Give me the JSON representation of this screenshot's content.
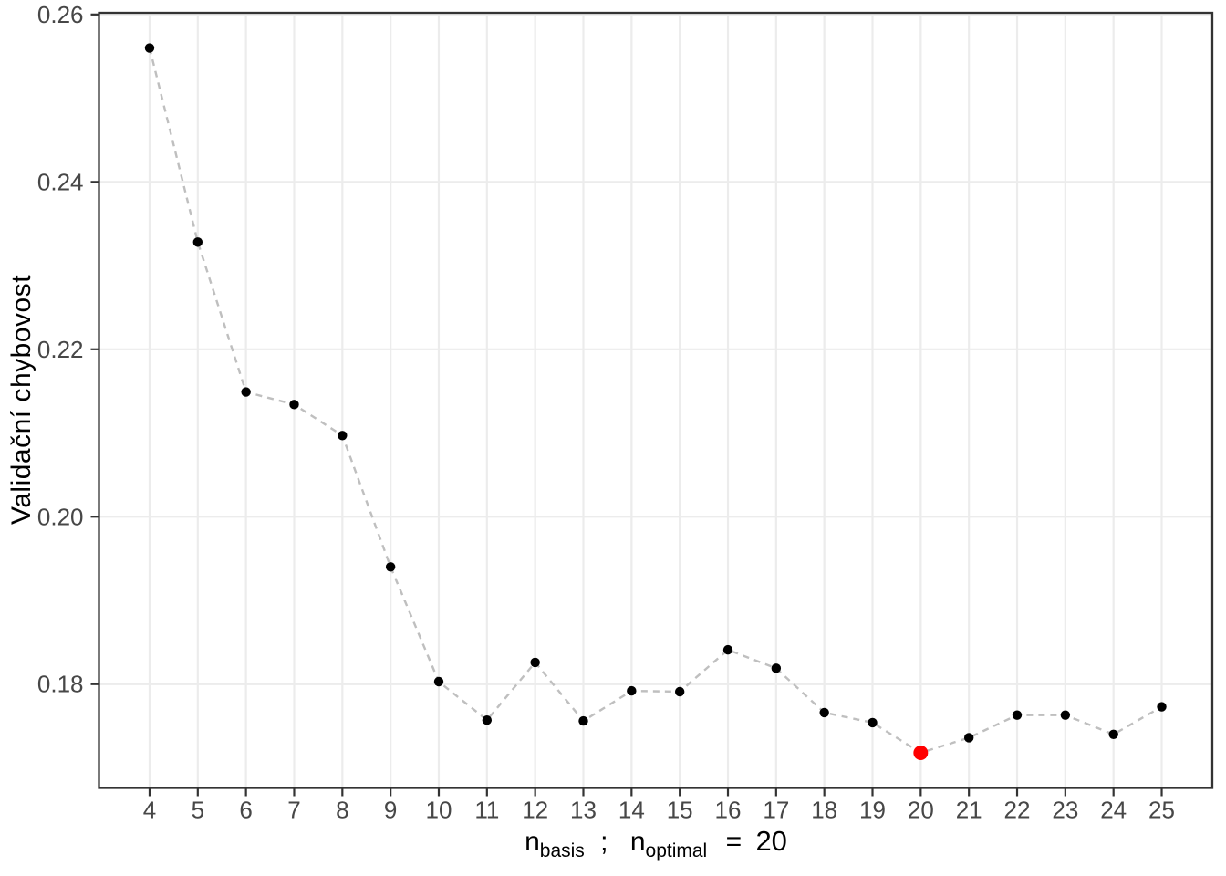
{
  "chart_data": {
    "type": "line",
    "title": "",
    "ylabel": "Validační chybovost",
    "xlabel": "n_basis ; n_optimal = 20",
    "xlabel_parts": {
      "var1_main": "n",
      "var1_sub": "basis",
      "separator": ";",
      "var2_main": "n",
      "var2_sub": "optimal",
      "equals": "=",
      "optimal_value": "20"
    },
    "x": [
      4,
      5,
      6,
      7,
      8,
      9,
      10,
      11,
      12,
      13,
      14,
      15,
      16,
      17,
      18,
      19,
      20,
      21,
      22,
      23,
      24,
      25
    ],
    "y": [
      0.256,
      0.2328,
      0.2149,
      0.2134,
      0.2097,
      0.194,
      0.1803,
      0.1757,
      0.1826,
      0.1756,
      0.1792,
      0.1791,
      0.1841,
      0.1819,
      0.1766,
      0.1754,
      0.1718,
      0.1736,
      0.1763,
      0.1763,
      0.174,
      0.1773
    ],
    "highlight": {
      "x": 20,
      "y": 0.1718,
      "color": "#ff0000"
    },
    "x_tick_labels": [
      "4",
      "5",
      "6",
      "7",
      "8",
      "9",
      "10",
      "11",
      "12",
      "13",
      "14",
      "15",
      "16",
      "17",
      "18",
      "19",
      "20",
      "21",
      "22",
      "23",
      "24",
      "25"
    ],
    "y_tick_values": [
      0.18,
      0.2,
      0.22,
      0.24,
      0.26
    ],
    "y_tick_labels": [
      "0.18",
      "0.20",
      "0.22",
      "0.24",
      "0.26"
    ],
    "xlim": [
      2.95,
      26.05
    ],
    "ylim": [
      0.1676,
      0.2602
    ],
    "grid": "major-only",
    "legend": "none",
    "line_style": "dashed",
    "colors": {
      "point": "#000000",
      "highlight_point": "#ff0000",
      "line": "#bfbfbf",
      "grid": "#ececec",
      "panel_border": "#333333",
      "tick": "#333333",
      "tick_label": "#474747",
      "axis_title": "#000000",
      "background": "#ffffff"
    }
  }
}
